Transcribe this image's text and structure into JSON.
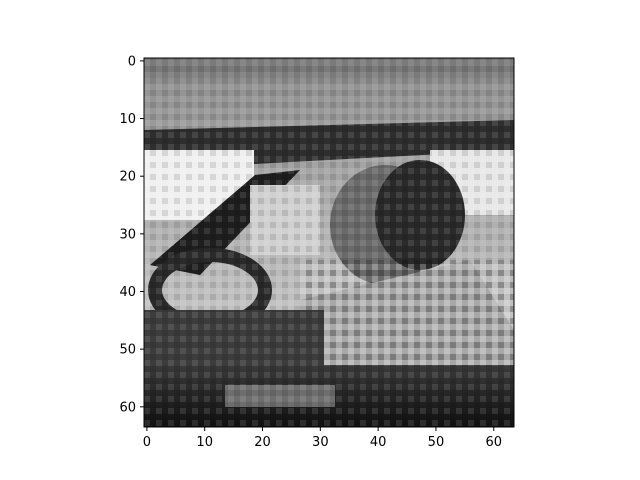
{
  "chart_data": {
    "type": "heatmap",
    "title": "",
    "xlabel": "",
    "ylabel": "",
    "colormap": "gray",
    "image_size": [
      64,
      64
    ],
    "xlim": [
      -0.5,
      63.5
    ],
    "ylim": [
      63.5,
      -0.5
    ],
    "x_ticks": [
      0,
      10,
      20,
      30,
      40,
      50,
      60
    ],
    "y_ticks": [
      0,
      10,
      20,
      30,
      40,
      50,
      60
    ],
    "x_tick_labels": [
      "0",
      "10",
      "20",
      "30",
      "40",
      "50",
      "60"
    ],
    "y_tick_labels": [
      "0",
      "10",
      "20",
      "30",
      "40",
      "50",
      "60"
    ],
    "grid": false,
    "legend": "none",
    "content": "pixelated grayscale photograph"
  }
}
